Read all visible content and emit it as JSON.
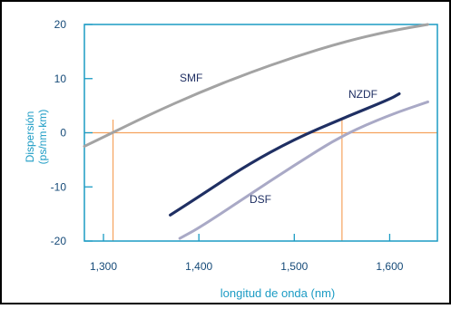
{
  "colors": {
    "axis": "#1b9bc4",
    "grid": "#f5a25d",
    "smf": "#a3a3a3",
    "nzdf": "#1f2f63",
    "dsf": "#a9a9c6",
    "border": "#000000",
    "label": "#1b9bc4",
    "curve_label": "#1f2f63"
  },
  "chart_data": {
    "type": "line",
    "title": "",
    "xlabel": "longitud de onda (nm)",
    "ylabel": "Dispersión (ps/nm·km)",
    "xlim": [
      1280,
      1650
    ],
    "ylim": [
      -20,
      20
    ],
    "x_ticks": [
      1300,
      1400,
      1500,
      1600
    ],
    "x_tick_labels": [
      "1,300",
      "1,400",
      "1,500",
      "1,600"
    ],
    "y_ticks": [
      20,
      10,
      0,
      -10,
      -20
    ],
    "y_tick_labels": [
      "20",
      "10",
      "0",
      "-10",
      "-20"
    ],
    "reference_lines": {
      "horizontal_zero": 0,
      "vertical_x": [
        1310,
        1550
      ]
    },
    "series": [
      {
        "name": "SMF",
        "x": [
          1280,
          1300,
          1350,
          1400,
          1450,
          1500,
          1550,
          1600,
          1640
        ],
        "y": [
          -2.5,
          -0.8,
          3.5,
          7.4,
          10.9,
          14.0,
          16.7,
          18.8,
          20.0
        ]
      },
      {
        "name": "NZDF",
        "x": [
          1370,
          1400,
          1450,
          1500,
          1550,
          1600,
          1610
        ],
        "y": [
          -15.2,
          -11.8,
          -6.0,
          -1.2,
          2.6,
          6.2,
          7.2
        ]
      },
      {
        "name": "DSF",
        "x": [
          1380,
          1400,
          1450,
          1500,
          1550,
          1600,
          1640
        ],
        "y": [
          -19.5,
          -17.6,
          -11.8,
          -6.0,
          -0.5,
          3.3,
          5.7
        ]
      }
    ]
  }
}
